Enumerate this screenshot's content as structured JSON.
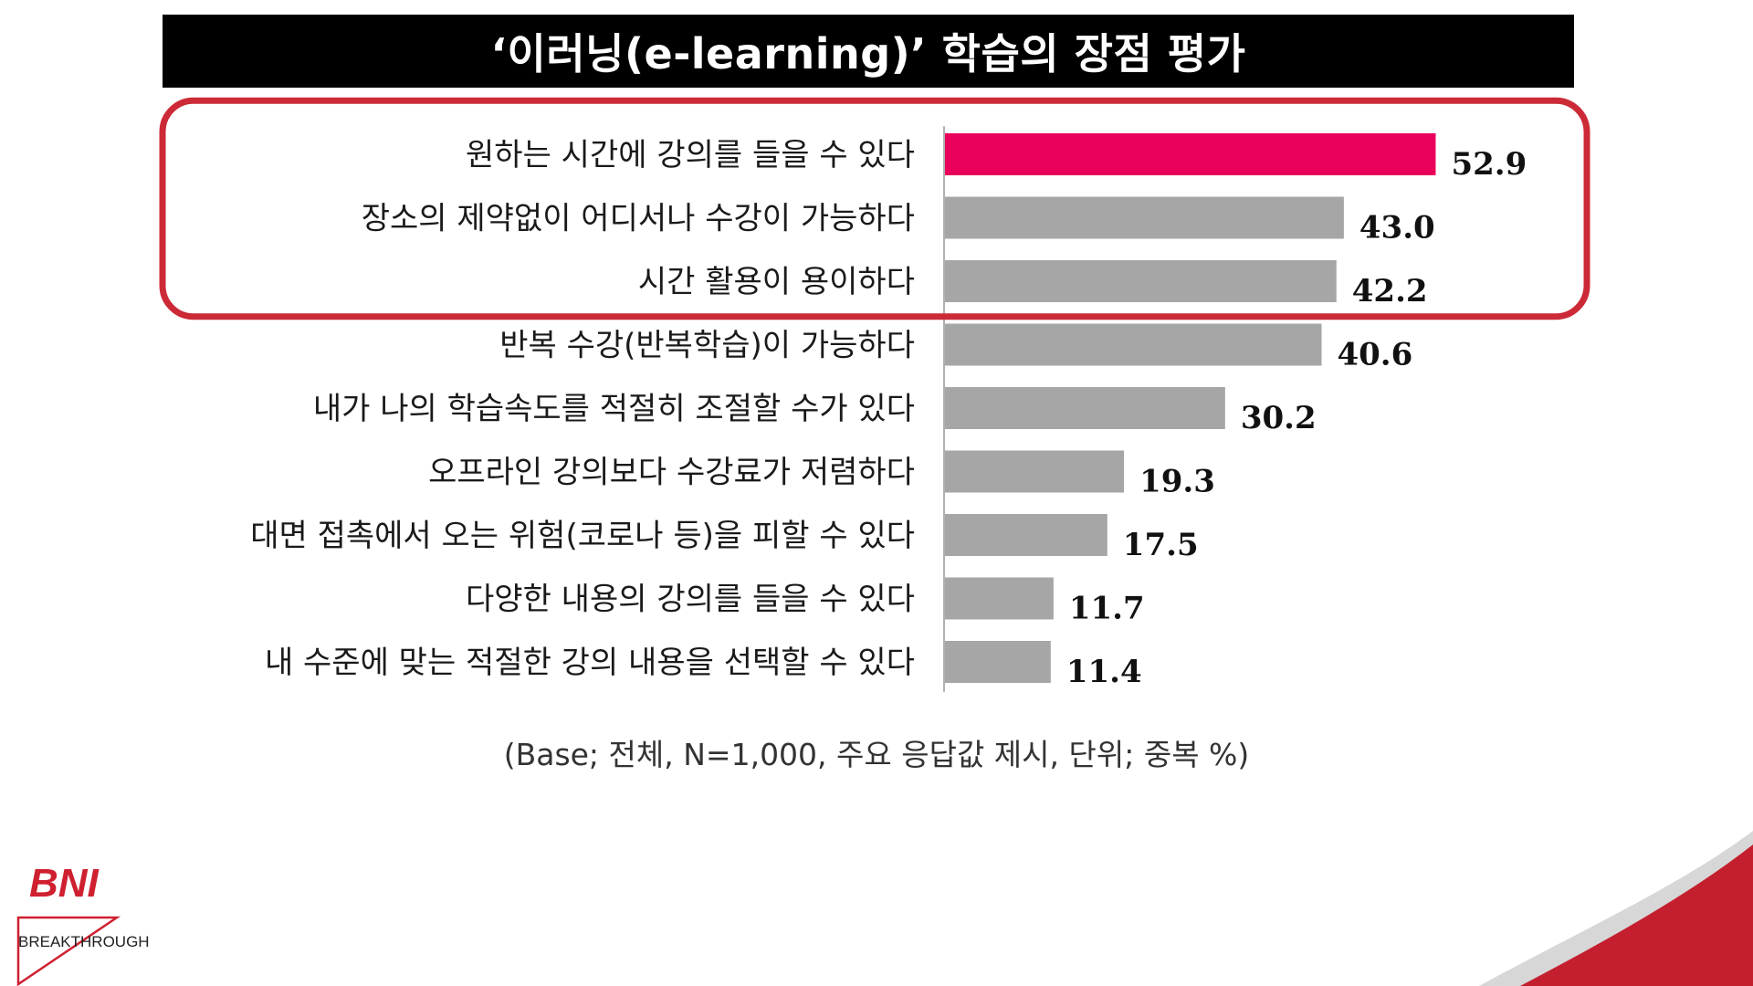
{
  "chart_data": {
    "type": "bar",
    "orientation": "horizontal",
    "title": "‘이러닝(e-learning)’ 학습의 장점 평가",
    "categories": [
      "원하는 시간에 강의를 들을 수 있다",
      "장소의 제약없이 어디서나 수강이 가능하다",
      "시간 활용이 용이하다",
      "반복 수강(반복학습)이 가능하다",
      "내가 나의 학습속도를 적절히 조절할 수가 있다",
      "오프라인 강의보다 수강료가 저렴하다",
      "대면 접촉에서 오는 위험(코로나 등)을 피할 수 있다",
      "다양한 내용의 강의를 들을 수 있다",
      "내 수준에 맞는 적절한 강의 내용을 선택할 수 있다"
    ],
    "values": [
      52.9,
      43.0,
      42.2,
      40.6,
      30.2,
      19.3,
      17.5,
      11.7,
      11.4
    ],
    "value_labels": [
      "52.9",
      "43.0",
      "42.2",
      "40.6",
      "30.2",
      "19.3",
      "17.5",
      "11.7",
      "11.4"
    ],
    "highlight_index": 0,
    "highlight_box_rows": [
      0,
      1,
      2
    ],
    "colors": {
      "highlight": "#e8005a",
      "default": "#a6a6a6",
      "box_outline": "#cc2a36"
    },
    "note": "(Base; 전체, N=1,000, 주요 응답값 제시, 단위; 중복 %)"
  },
  "logo": {
    "brand": "BNI",
    "sub": "BREAKTHROUGH",
    "brand_color": "#cf2030"
  },
  "corner_colors": [
    "#c41f2e",
    "#d7d7d7"
  ]
}
